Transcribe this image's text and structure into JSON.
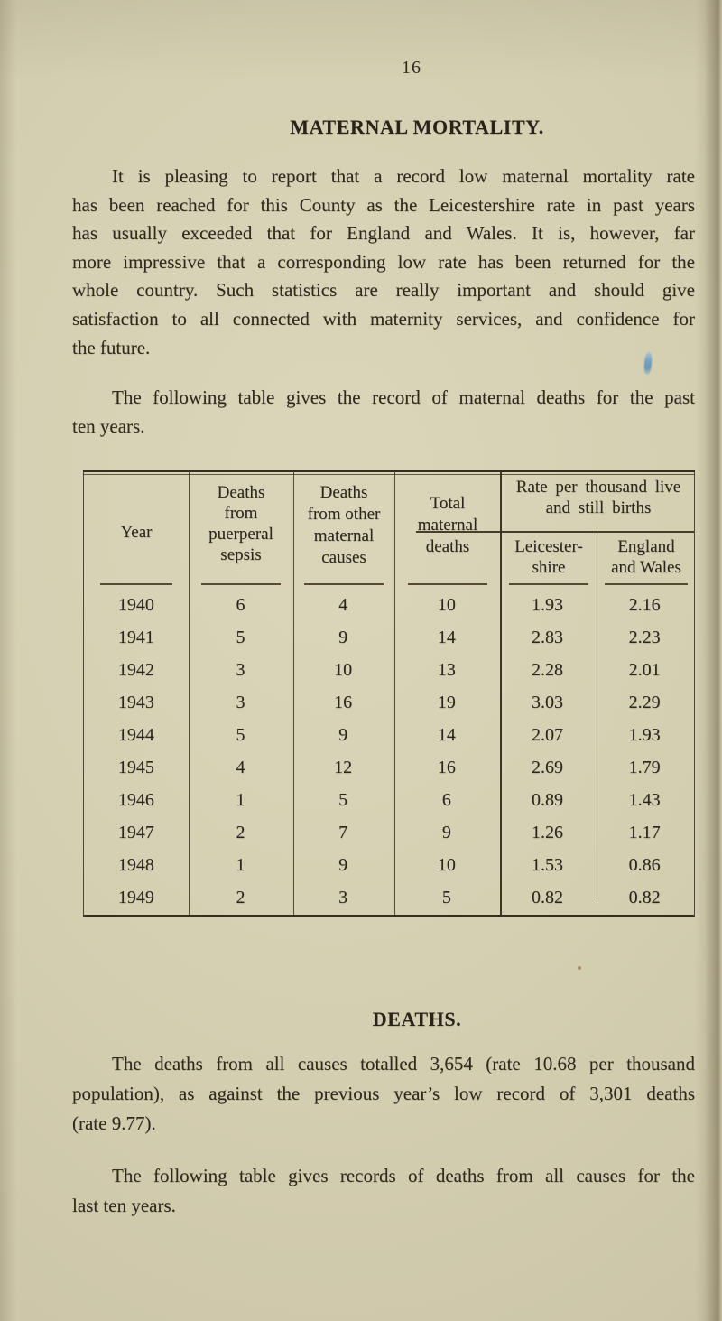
{
  "page_number": "16",
  "sections": {
    "maternal": {
      "title": "MATERNAL MORTALITY.",
      "para1_lines": [
        "It is pleasing to report that a record low maternal mortality rate",
        "has been reached for this County as the Leicestershire rate in past years",
        "has usually exceeded that for England and Wales. It is, however, far",
        "more impressive that a corresponding low rate has been returned for the",
        "whole country. Such statistics are really important and should give",
        "satisfaction to all connected with maternity services, and confidence for",
        "the future."
      ],
      "para2_lines": [
        "The following table gives the record of maternal deaths for the past",
        "ten years."
      ]
    },
    "deaths": {
      "title": "DEATHS.",
      "para1_lines": [
        "The deaths from all causes totalled 3,654 (rate 10.68 per thousand",
        "population), as against the previous year’s low record of 3,301 deaths",
        "(rate 9.77)."
      ],
      "para2_lines": [
        "The following table gives records of deaths from all causes for the",
        "last ten years."
      ]
    }
  },
  "table": {
    "col_headers": {
      "year": "Year",
      "sepsis": [
        "Deaths",
        "from",
        "puerperal",
        "sepsis"
      ],
      "other": [
        "Deaths",
        "from other",
        "maternal",
        "causes"
      ],
      "total": [
        "Total",
        "maternal",
        "deaths"
      ],
      "rate_group": [
        "Rate per thousand live",
        "and still births"
      ],
      "leics": [
        "Leicester-",
        "shire"
      ],
      "ew": [
        "England",
        "and Wales"
      ]
    },
    "rows": [
      {
        "year": "1940",
        "sepsis": "6",
        "other": "4",
        "total": "10",
        "leics": "1.93",
        "ew": "2.16"
      },
      {
        "year": "1941",
        "sepsis": "5",
        "other": "9",
        "total": "14",
        "leics": "2.83",
        "ew": "2.23"
      },
      {
        "year": "1942",
        "sepsis": "3",
        "other": "10",
        "total": "13",
        "leics": "2.28",
        "ew": "2.01"
      },
      {
        "year": "1943",
        "sepsis": "3",
        "other": "16",
        "total": "19",
        "leics": "3.03",
        "ew": "2.29"
      },
      {
        "year": "1944",
        "sepsis": "5",
        "other": "9",
        "total": "14",
        "leics": "2.07",
        "ew": "1.93"
      },
      {
        "year": "1945",
        "sepsis": "4",
        "other": "12",
        "total": "16",
        "leics": "2.69",
        "ew": "1.79"
      },
      {
        "year": "1946",
        "sepsis": "1",
        "other": "5",
        "total": "6",
        "leics": "0.89",
        "ew": "1.43"
      },
      {
        "year": "1947",
        "sepsis": "2",
        "other": "7",
        "total": "9",
        "leics": "1.26",
        "ew": "1.17"
      },
      {
        "year": "1948",
        "sepsis": "1",
        "other": "9",
        "total": "10",
        "leics": "1.53",
        "ew": "0.86"
      },
      {
        "year": "1949",
        "sepsis": "2",
        "other": "3",
        "total": "5",
        "leics": "0.82",
        "ew": "0.82"
      }
    ]
  },
  "artifacts": {
    "ink_mark_color": "#6f9fc0",
    "paper_color": "#d5cfb2"
  }
}
